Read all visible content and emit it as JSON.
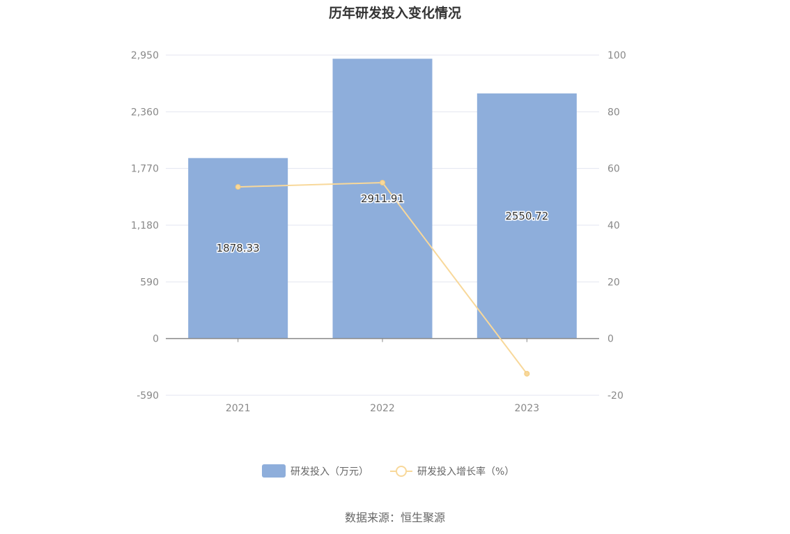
{
  "chart_data": {
    "type": "bar",
    "title": "历年研发投入变化情况",
    "categories": [
      "2021",
      "2022",
      "2023"
    ],
    "series": [
      {
        "name": "研发投入（万元）",
        "kind": "bar",
        "axis": "left",
        "values": [
          1878.33,
          2911.91,
          2550.72
        ],
        "labels": [
          "1878.33",
          "2911.91",
          "2550.72"
        ],
        "color": "#8eaedb"
      },
      {
        "name": "研发投入增长率（%）",
        "kind": "line",
        "axis": "right",
        "values": [
          53.5,
          55.0,
          -12.4
        ],
        "color": "#f8d89a"
      }
    ],
    "y_left": {
      "min": -590,
      "max": 2950,
      "ticks": [
        2950,
        2360,
        1770,
        1180,
        590,
        0,
        -590
      ],
      "tick_labels": [
        "2,950",
        "2,360",
        "1,770",
        "1,180",
        "590",
        "0",
        "-590"
      ]
    },
    "y_right": {
      "min": -20,
      "max": 100,
      "ticks": [
        100,
        80,
        60,
        40,
        20,
        0,
        -20
      ],
      "tick_labels": [
        "100",
        "80",
        "60",
        "40",
        "20",
        "0",
        "-20"
      ]
    },
    "grid": true,
    "legend_position": "bottom-center"
  },
  "source_text": "数据来源：恒生聚源"
}
